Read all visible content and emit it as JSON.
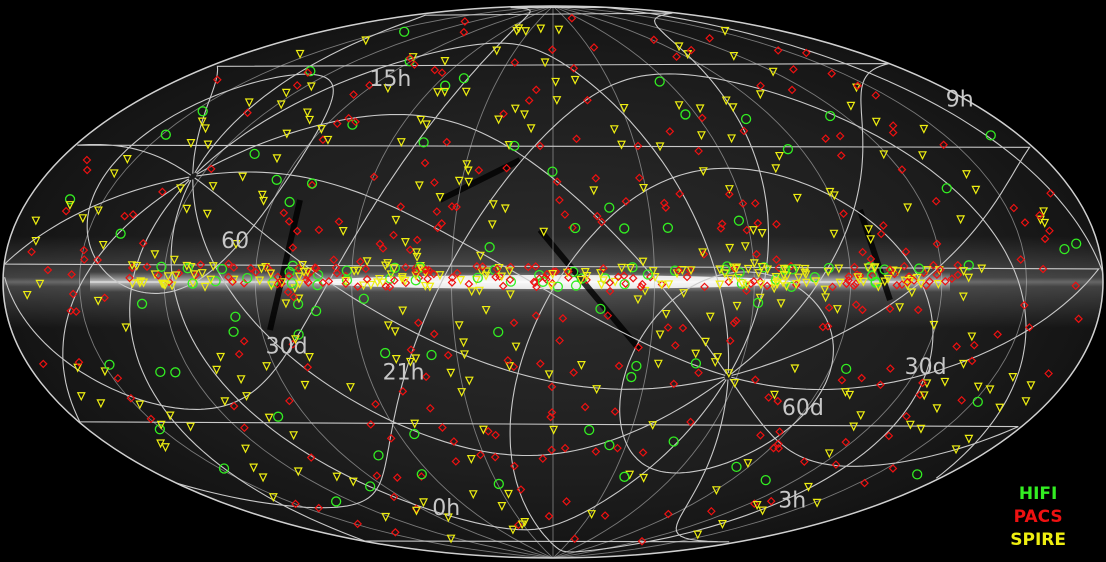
{
  "map": {
    "projection": "aitoff-hammer",
    "background_color": "#000000",
    "grid_color": "#c9c9c9",
    "milky_way": "galactic plane"
  },
  "grid_labels": [
    {
      "text": "15h",
      "ra_hours": 15,
      "dec_deg": 48
    },
    {
      "text": "9h",
      "ra_hours": 9,
      "dec_deg": 36
    },
    {
      "text": "21h",
      "ra_hours": 21,
      "dec_deg": 0
    },
    {
      "text": "3h",
      "ra_hours": 3,
      "dec_deg": -24
    },
    {
      "text": "0h",
      "ra_hours": 0,
      "dec_deg": -12
    },
    {
      "text": "60",
      "ra_hours": 21,
      "dec_deg": 60
    },
    {
      "text": "30d",
      "ra_hours": 22,
      "dec_deg": 30
    },
    {
      "text": "60d",
      "ra_hours": 5,
      "dec_deg": -60
    },
    {
      "text": "30d",
      "ra_hours": 6,
      "dec_deg": -30
    }
  ],
  "legend": [
    {
      "label": "HIFI",
      "color": "#33ee22"
    },
    {
      "label": "PACS",
      "color": "#ee1111"
    },
    {
      "label": "SPIRE",
      "color": "#eeee11"
    }
  ]
}
